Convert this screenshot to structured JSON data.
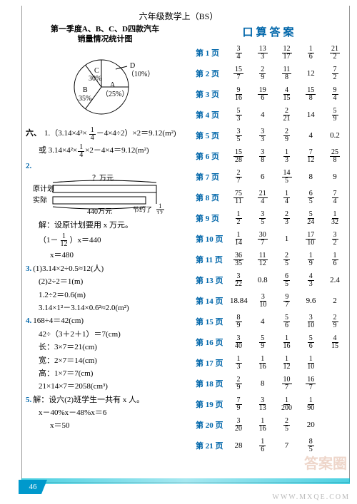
{
  "header": {
    "title": "六年级数学上（BS）"
  },
  "pie": {
    "title_l1": "第一季度A、B、C、D四款汽车",
    "title_l2": "销量情况统计图",
    "slices": [
      {
        "label": "A",
        "sub": "（25%）",
        "frac": 0.25,
        "start": 0
      },
      {
        "label": "B",
        "sub": "35%",
        "frac": 0.35,
        "start": 0.25
      },
      {
        "label": "C",
        "sub": "30%",
        "frac": 0.3,
        "start": 0.6
      },
      {
        "label": "D",
        "sub": "（10%）",
        "frac": 0.1,
        "start": 0.9
      }
    ],
    "colors": {
      "fill": "#ffffff",
      "stroke": "#000000"
    }
  },
  "left": {
    "section6": "六、",
    "l1a": "1.（3.14×4²×",
    "l1b": "－4×4÷2）×2＝9.12(m²)",
    "l1c": "或 3.14×4²×",
    "l1d": "×2－4×4＝9.12(m²)",
    "f14": {
      "n": "1",
      "d": "4"
    },
    "p2": "2.",
    "tape": {
      "q": "？万元",
      "plan": "原计划",
      "actual": "实际",
      "val": "440万元",
      "save": "节约了",
      "sv": {
        "n": "1",
        "d": "12"
      }
    },
    "p2a": "解：设原计划要用 x 万元。",
    "p2b_pre": "（1－",
    "p2b_mid": "）x＝440",
    "p2c": "x＝480",
    "p3": "3.",
    "p3a": "(1)3.14×2÷0.5≈12(人)",
    "p3b": "(2)2÷2＝1(m)",
    "p3c": "1.2÷2＝0.6(m)",
    "p3d": "3.14×1²－3.14×0.6²≈2.0(m²)",
    "p4": "4.",
    "p4a": "168÷4＝42(cm)",
    "p4b": "42÷（3＋2＋1）＝7(cm)",
    "p4c": "长：3×7＝21(cm)",
    "p4d": "宽：2×7＝14(cm)",
    "p4e": "高：1×7＝7(cm)",
    "p4f": "21×14×7＝2058(cm³)",
    "p5": "5.",
    "p5a": "解：设六(2)班学生一共有 x 人。",
    "p5b": "x－40%x－48%x＝6",
    "p5c": "x＝50"
  },
  "answers": {
    "title": "口算答案",
    "rows": [
      {
        "p": "第 1 页",
        "v": [
          {
            "n": "3",
            "d": "4"
          },
          {
            "n": "13",
            "d": "3"
          },
          {
            "n": "12",
            "d": "17"
          },
          {
            "n": "1",
            "d": "6"
          },
          {
            "n": "21",
            "d": "2"
          }
        ]
      },
      {
        "p": "第 2 页",
        "v": [
          {
            "n": "15",
            "d": "7"
          },
          {
            "n": "2",
            "d": "9"
          },
          {
            "n": "11",
            "d": "8"
          },
          "12",
          {
            "n": "7",
            "d": "2"
          }
        ]
      },
      {
        "p": "第 3 页",
        "v": [
          {
            "n": "9",
            "d": "16"
          },
          {
            "n": "19",
            "d": "6"
          },
          {
            "n": "4",
            "d": "15"
          },
          {
            "n": "15",
            "d": "8"
          },
          {
            "n": "9",
            "d": "4"
          }
        ]
      },
      {
        "p": "第 4 页",
        "v": [
          {
            "n": "5",
            "d": "3"
          },
          "4",
          {
            "n": "2",
            "d": "21"
          },
          "14",
          {
            "n": "5",
            "d": "9"
          }
        ]
      },
      {
        "p": "第 5 页",
        "v": [
          {
            "n": "3",
            "d": "5"
          },
          {
            "n": "3",
            "d": "3"
          },
          {
            "n": "2",
            "d": "9"
          },
          "4",
          "0.2"
        ]
      },
      {
        "p": "第 6 页",
        "v": [
          {
            "n": "15",
            "d": "28"
          },
          {
            "n": "3",
            "d": "8"
          },
          {
            "n": "1",
            "d": "3"
          },
          {
            "n": "7",
            "d": "12"
          },
          {
            "n": "25",
            "d": "8"
          }
        ]
      },
      {
        "p": "第 7 页",
        "v": [
          {
            "n": "2",
            "d": "7"
          },
          "6",
          {
            "n": "14",
            "d": "5"
          },
          "8",
          "9"
        ]
      },
      {
        "p": "第 8 页",
        "v": [
          {
            "n": "75",
            "d": "11"
          },
          {
            "n": "21",
            "d": "4"
          },
          {
            "n": "1",
            "d": "4"
          },
          {
            "n": "6",
            "d": "5"
          },
          {
            "n": "7",
            "d": "4"
          }
        ]
      },
      {
        "p": "第 9 页",
        "v": [
          {
            "n": "1",
            "d": "2"
          },
          {
            "n": "3",
            "d": "5"
          },
          {
            "n": "2",
            "d": "3"
          },
          {
            "n": "5",
            "d": "24"
          },
          {
            "n": "1",
            "d": "32"
          }
        ]
      },
      {
        "p": "第 10 页",
        "v": [
          {
            "n": "1",
            "d": "14"
          },
          {
            "n": "30",
            "d": "7"
          },
          "1",
          {
            "n": "17",
            "d": "10"
          },
          {
            "n": "3",
            "d": "2"
          }
        ]
      },
      {
        "p": "第 11 页",
        "v": [
          {
            "n": "36",
            "d": "35"
          },
          {
            "n": "11",
            "d": "12"
          },
          {
            "n": "2",
            "d": "5"
          },
          {
            "n": "1",
            "d": "9"
          },
          {
            "n": "1",
            "d": "6"
          }
        ]
      },
      {
        "p": "第 13 页",
        "v": [
          {
            "n": "3",
            "d": "22"
          },
          "0.8",
          {
            "n": "6",
            "d": "5"
          },
          {
            "n": "4",
            "d": "3"
          },
          "2.4"
        ]
      },
      {
        "p": "第 14 页",
        "v": [
          "18.84",
          {
            "n": "3",
            "d": "10"
          },
          {
            "n": "9",
            "d": "7"
          },
          "9.6",
          "2"
        ]
      },
      {
        "p": "第 15 页",
        "v": [
          {
            "n": "8",
            "d": "9"
          },
          "4",
          {
            "n": "5",
            "d": "6"
          },
          {
            "n": "3",
            "d": "10"
          },
          {
            "n": "2",
            "d": "9"
          }
        ]
      },
      {
        "p": "第 16 页",
        "v": [
          {
            "n": "3",
            "d": "40"
          },
          {
            "n": "5",
            "d": "9"
          },
          {
            "n": "1",
            "d": "16"
          },
          {
            "n": "5",
            "d": "6"
          },
          {
            "n": "4",
            "d": "15"
          }
        ]
      },
      {
        "p": "第 17 页",
        "v": [
          {
            "n": "1",
            "d": "3"
          },
          {
            "n": "1",
            "d": "16"
          },
          {
            "n": "1",
            "d": "12"
          },
          {
            "n": "1",
            "d": "10"
          },
          ""
        ]
      },
      {
        "p": "第 18 页",
        "v": [
          {
            "n": "2",
            "d": "9"
          },
          "8",
          {
            "n": "10",
            "d": "7"
          },
          {
            "n": "16",
            "d": "7"
          },
          ""
        ]
      },
      {
        "p": "第 19 页",
        "v": [
          {
            "n": "7",
            "d": "9"
          },
          {
            "n": "3",
            "d": "13"
          },
          {
            "n": "1",
            "d": "200"
          },
          {
            "n": "1",
            "d": "90"
          },
          ""
        ]
      },
      {
        "p": "第 20 页",
        "v": [
          {
            "n": "3",
            "d": "20"
          },
          {
            "n": "1",
            "d": "16"
          },
          {
            "n": "2",
            "d": "5"
          },
          "20",
          ""
        ]
      },
      {
        "p": "第 21 页",
        "v": [
          "28",
          {
            "n": "1",
            "d": "6"
          },
          "7",
          {
            "n": "8",
            "d": "5"
          },
          ""
        ]
      }
    ]
  },
  "pagenum": "46",
  "wm1": "WWW.MXQE.COM",
  "wm2": "答案圈"
}
